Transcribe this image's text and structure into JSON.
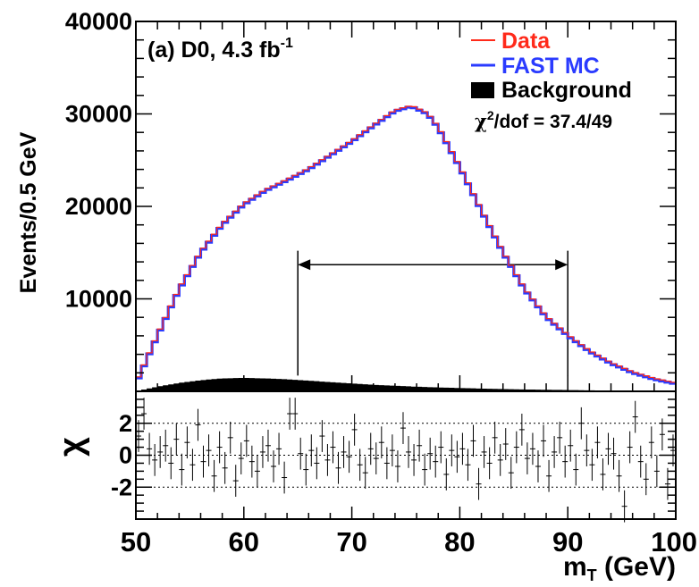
{
  "chart_data": [
    {
      "type": "line",
      "annotation": "(a) D0, 4.3 fb",
      "annotation_sup": "-1",
      "ylabel": "Events/0.5 GeV",
      "xlim": [
        50,
        100
      ],
      "ylim": [
        0,
        40000
      ],
      "yticks": [
        "10000",
        "20000",
        "30000",
        "40000"
      ],
      "legend_position": "top-right",
      "legend": [
        {
          "label": "Data",
          "color": "#ff2a1a"
        },
        {
          "label": "FAST MC",
          "color": "#2a3bff"
        },
        {
          "label": "Background",
          "color": "#000000"
        }
      ],
      "chi2_prefix": "χ",
      "chi2_sup": "2",
      "chi2_text": "/dof = 37.4/49",
      "fit_range": [
        65,
        90
      ],
      "series": [
        {
          "name": "FAST MC",
          "x": [
            50,
            52,
            54,
            56,
            58,
            60,
            62,
            64,
            66,
            68,
            70,
            72,
            74,
            75.5,
            77,
            78,
            80,
            82,
            84,
            86,
            88,
            90,
            92,
            94,
            96,
            98,
            100
          ],
          "values": [
            800,
            6000,
            11000,
            15000,
            18000,
            20200,
            21700,
            22800,
            24000,
            25500,
            27000,
            28700,
            30300,
            30800,
            30000,
            28500,
            24200,
            19500,
            15000,
            11000,
            8000,
            6000,
            4300,
            3000,
            2000,
            1300,
            800
          ]
        },
        {
          "name": "Background",
          "x": [
            50,
            52,
            54,
            56,
            58,
            60,
            62,
            64,
            66,
            68,
            70,
            72,
            74,
            76,
            78,
            80,
            82,
            84,
            86,
            88,
            90,
            92,
            94,
            96,
            98,
            100
          ],
          "values": [
            0,
            500,
            900,
            1200,
            1400,
            1450,
            1400,
            1300,
            1150,
            1000,
            850,
            700,
            600,
            500,
            420,
            360,
            300,
            250,
            200,
            170,
            140,
            110,
            90,
            70,
            50,
            40
          ]
        }
      ]
    },
    {
      "type": "scatter",
      "ylabel": "χ",
      "xlabel": "m",
      "xlabel_sub": "T",
      "xlabel_unit": " (GeV)",
      "xlim": [
        50,
        100
      ],
      "ylim": [
        -4,
        4
      ],
      "xticks": [
        "50",
        "60",
        "70",
        "80",
        "90",
        "100"
      ],
      "yticks": [
        "-2",
        "0",
        "2"
      ],
      "dotted_lines": [
        -2,
        0,
        2
      ],
      "series": [
        {
          "name": "χ",
          "x": [
            50.25,
            50.75,
            51.25,
            51.75,
            52.25,
            52.75,
            53.25,
            53.75,
            54.25,
            54.75,
            55.25,
            55.75,
            56.25,
            56.75,
            57.25,
            57.75,
            58.25,
            58.75,
            59.25,
            59.75,
            60.25,
            60.75,
            61.25,
            61.75,
            62.25,
            62.75,
            63.25,
            63.75,
            64.25,
            64.75,
            65.25,
            65.75,
            66.25,
            66.75,
            67.25,
            67.75,
            68.25,
            68.75,
            69.25,
            69.75,
            70.25,
            70.75,
            71.25,
            71.75,
            72.25,
            72.75,
            73.25,
            73.75,
            74.25,
            74.75,
            75.25,
            75.75,
            76.25,
            76.75,
            77.25,
            77.75,
            78.25,
            78.75,
            79.25,
            79.75,
            80.25,
            80.75,
            81.25,
            81.75,
            82.25,
            82.75,
            83.25,
            83.75,
            84.25,
            84.75,
            85.25,
            85.75,
            86.25,
            86.75,
            87.25,
            87.75,
            88.25,
            88.75,
            89.25,
            89.75,
            90.25,
            90.75,
            91.25,
            91.75,
            92.25,
            92.75,
            93.25,
            93.75,
            94.25,
            94.75,
            95.25,
            95.75,
            96.25,
            96.75,
            97.25,
            97.75,
            98.25,
            98.75,
            99.25,
            99.75
          ],
          "values": [
            1.2,
            2.6,
            0.4,
            -0.3,
            0.2,
            0.6,
            -0.5,
            1.0,
            -0.9,
            0.8,
            -0.6,
            1.9,
            -0.4,
            0.3,
            -1.3,
            0.5,
            -0.8,
            1.1,
            -1.6,
            -0.2,
            0.9,
            -0.4,
            -1.0,
            0.2,
            0.6,
            -0.7,
            0.4,
            -1.4,
            2.6,
            2.6,
            0.1,
            -0.9,
            0.3,
            -0.5,
            1.2,
            -0.3,
            0.5,
            -0.8,
            0.2,
            -0.1,
            1.6,
            -0.6,
            -1.1,
            0.4,
            -0.2,
            0.8,
            -0.5,
            0.3,
            -0.7,
            1.7,
            0.2,
            -0.3,
            0.6,
            -0.9,
            0.1,
            -0.4,
            0.5,
            -1.2,
            0.3,
            -0.1,
            0.4,
            -0.6,
            0.9,
            -1.8,
            0.2,
            -0.5,
            1.1,
            -0.3,
            0.7,
            -1.1,
            0.5,
            1.6,
            -0.2,
            0.4,
            -0.7,
            0.9,
            -1.3,
            0.2,
            1.1,
            -0.4,
            0.6,
            -0.9,
            2.0,
            0.3,
            -0.6,
            0.8,
            -1.2,
            0.4,
            0.1,
            -1.3,
            -3.2,
            0.5,
            2.4,
            -0.4,
            -1.5,
            0.8,
            -1.0,
            1.3,
            -1.8,
            0.3
          ]
        }
      ]
    }
  ]
}
